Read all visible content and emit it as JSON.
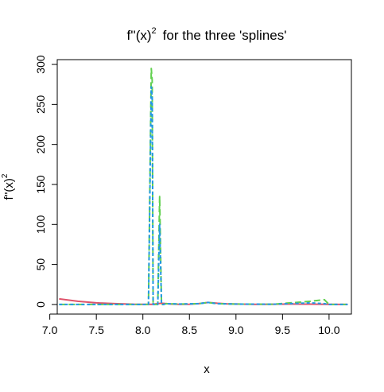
{
  "chart_data": {
    "type": "line",
    "title_main": "f''(x)",
    "title_superscript": "2",
    "title_rest": "for the three 'splines'",
    "xlabel": "x",
    "ylabel_main": "f''(x)",
    "ylabel_superscript": "2",
    "xlim": [
      7.08,
      10.24
    ],
    "ylim": [
      -12,
      306
    ],
    "x_ticks": [
      "7.0",
      "7.5",
      "8.0",
      "8.5",
      "9.0",
      "9.5",
      "10.0"
    ],
    "x_tick_values": [
      7.0,
      7.5,
      8.0,
      8.5,
      9.0,
      9.5,
      10.0
    ],
    "y_ticks": [
      "0",
      "50",
      "100",
      "150",
      "200",
      "250",
      "300"
    ],
    "y_tick_values": [
      0,
      50,
      100,
      150,
      200,
      250,
      300
    ],
    "series": [
      {
        "color": "#DF536B",
        "dash": "solid",
        "x": [
          7.1,
          7.3,
          7.5,
          7.7,
          7.9,
          8.1,
          8.2,
          8.3,
          8.4,
          8.5,
          8.6,
          8.7,
          8.8,
          8.9,
          9.0,
          9.2,
          9.4,
          9.6,
          9.8,
          10.0,
          10.2
        ],
        "y": [
          7,
          4,
          2,
          1,
          0.3,
          0.2,
          1.5,
          0.5,
          0.2,
          0.3,
          1,
          2.5,
          1.5,
          0.8,
          0.5,
          0.2,
          0.3,
          0.5,
          0.4,
          0.2,
          0
        ]
      },
      {
        "color": "#61D04F",
        "dash": "long",
        "x": [
          7.1,
          7.5,
          8.0,
          8.06,
          8.09,
          8.1,
          8.11,
          8.14,
          8.16,
          8.18,
          8.2,
          8.22,
          8.25,
          8.4,
          8.6,
          8.7,
          8.8,
          9.0,
          9.4,
          9.8,
          9.95,
          10.0,
          10.05,
          10.2
        ],
        "y": [
          0,
          0,
          0,
          0,
          295,
          280,
          0,
          0,
          0,
          135,
          0,
          0,
          1,
          0.5,
          1,
          2.5,
          1,
          0.5,
          0.3,
          4,
          6,
          0,
          0,
          0
        ]
      },
      {
        "color": "#2297E6",
        "dash": "short",
        "x": [
          7.1,
          7.5,
          8.0,
          8.06,
          8.09,
          8.1,
          8.11,
          8.14,
          8.16,
          8.18,
          8.2,
          8.22,
          8.25,
          8.4,
          8.6,
          8.7,
          8.8,
          9.0,
          9.4,
          9.8,
          9.95,
          10.0,
          10.05,
          10.2
        ],
        "y": [
          0,
          0,
          0,
          0,
          272,
          260,
          0,
          0,
          0,
          100,
          0,
          0,
          1,
          0.5,
          1,
          2.5,
          1,
          0.5,
          0.3,
          2,
          1,
          0,
          0,
          0
        ]
      }
    ]
  }
}
